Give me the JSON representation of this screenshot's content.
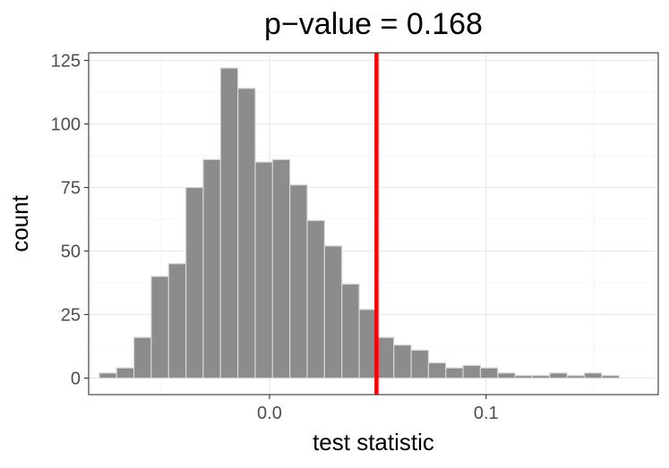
{
  "chart_data": {
    "type": "bar",
    "title": "p−value = 0.168",
    "xlabel": "test statistic",
    "ylabel": "count",
    "xlim": [
      -0.0835,
      0.1795
    ],
    "ylim": [
      -6.5,
      128
    ],
    "bin_width": 0.008,
    "x_ticks": [
      {
        "value": 0.0,
        "label": "0.0"
      },
      {
        "value": 0.1,
        "label": "0.1"
      }
    ],
    "y_ticks": [
      {
        "value": 0,
        "label": "0"
      },
      {
        "value": 25,
        "label": "25"
      },
      {
        "value": 50,
        "label": "50"
      },
      {
        "value": 75,
        "label": "75"
      },
      {
        "value": 100,
        "label": "100"
      },
      {
        "value": 125,
        "label": "125"
      }
    ],
    "grid": true,
    "bars": [
      {
        "x": -0.0746,
        "count": 2
      },
      {
        "x": -0.0666,
        "count": 4
      },
      {
        "x": -0.0586,
        "count": 16
      },
      {
        "x": -0.0506,
        "count": 40
      },
      {
        "x": -0.0426,
        "count": 45
      },
      {
        "x": -0.0346,
        "count": 75
      },
      {
        "x": -0.0266,
        "count": 86
      },
      {
        "x": -0.0186,
        "count": 122
      },
      {
        "x": -0.0106,
        "count": 114
      },
      {
        "x": -0.0026,
        "count": 85
      },
      {
        "x": 0.0054,
        "count": 86
      },
      {
        "x": 0.0134,
        "count": 76
      },
      {
        "x": 0.0214,
        "count": 62
      },
      {
        "x": 0.0294,
        "count": 52
      },
      {
        "x": 0.0374,
        "count": 37
      },
      {
        "x": 0.0454,
        "count": 27
      },
      {
        "x": 0.0534,
        "count": 16
      },
      {
        "x": 0.0614,
        "count": 13
      },
      {
        "x": 0.0694,
        "count": 11
      },
      {
        "x": 0.0774,
        "count": 6
      },
      {
        "x": 0.0854,
        "count": 4
      },
      {
        "x": 0.0934,
        "count": 5
      },
      {
        "x": 0.1014,
        "count": 4
      },
      {
        "x": 0.1094,
        "count": 2
      },
      {
        "x": 0.1174,
        "count": 1
      },
      {
        "x": 0.1254,
        "count": 1
      },
      {
        "x": 0.1334,
        "count": 2
      },
      {
        "x": 0.1414,
        "count": 1
      },
      {
        "x": 0.1494,
        "count": 2
      },
      {
        "x": 0.1574,
        "count": 1
      }
    ],
    "observed_statistic": 0.0494,
    "colors": {
      "bar_fill": "#8c8c8c",
      "bar_outline": "#d6d6d6",
      "observed_line": "#ff0000",
      "grid_major": "#ebebeb",
      "grid_minor": "#f5f5f5",
      "panel_border": "#333333"
    }
  }
}
